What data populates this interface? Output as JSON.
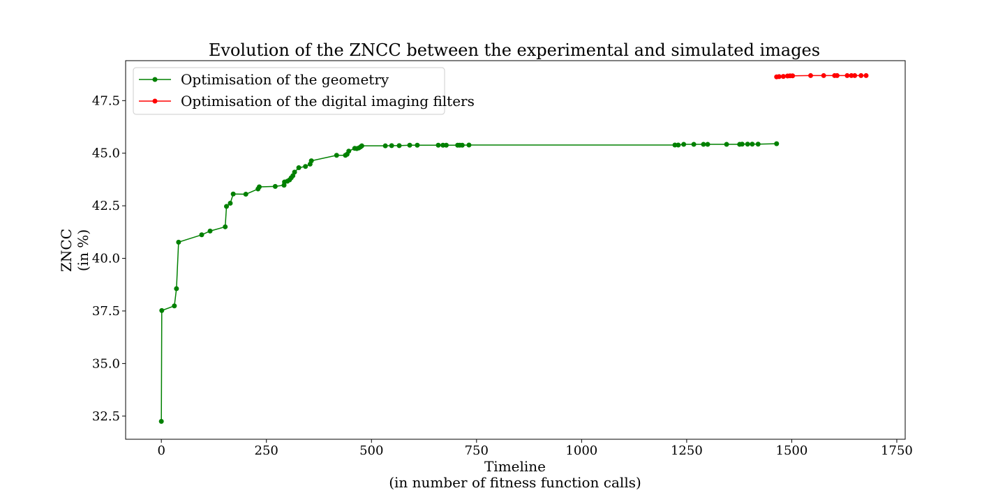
{
  "chart_data": {
    "type": "line",
    "title": "Evolution of the ZNCC between the experimental and simulated images",
    "xlabel": [
      "Timeline",
      "(in number of fitness function calls)"
    ],
    "ylabel": [
      "ZNCC",
      "(in %)"
    ],
    "xlim": [
      -85,
      1770
    ],
    "ylim": [
      31.4,
      49.4
    ],
    "xticks": [
      0,
      250,
      500,
      750,
      1000,
      1250,
      1500,
      1750
    ],
    "xtick_labels": [
      "0",
      "250",
      "500",
      "750",
      "1000",
      "1250",
      "1500",
      "1750"
    ],
    "yticks": [
      32.5,
      35.0,
      37.5,
      40.0,
      42.5,
      45.0,
      47.5
    ],
    "ytick_labels": [
      "32.5",
      "35.0",
      "37.5",
      "40.0",
      "42.5",
      "45.0",
      "47.5"
    ],
    "grid": false,
    "legend_position": "top-left",
    "series": [
      {
        "name": "Optimisation of the geometry",
        "color": "#008000",
        "points": [
          [
            0,
            32.25
          ],
          [
            1,
            37.52
          ],
          [
            31,
            37.74
          ],
          [
            36,
            38.56
          ],
          [
            41,
            40.77
          ],
          [
            96,
            41.12
          ],
          [
            116,
            41.3
          ],
          [
            152,
            41.5
          ],
          [
            155,
            42.47
          ],
          [
            164,
            42.62
          ],
          [
            171,
            43.06
          ],
          [
            201,
            43.05
          ],
          [
            230,
            43.3
          ],
          [
            233,
            43.4
          ],
          [
            271,
            43.42
          ],
          [
            292,
            43.48
          ],
          [
            293,
            43.63
          ],
          [
            300,
            43.67
          ],
          [
            305,
            43.73
          ],
          [
            309,
            43.83
          ],
          [
            313,
            43.93
          ],
          [
            317,
            44.1
          ],
          [
            327,
            44.31
          ],
          [
            343,
            44.37
          ],
          [
            354,
            44.48
          ],
          [
            357,
            44.64
          ],
          [
            417,
            44.9
          ],
          [
            438,
            44.9
          ],
          [
            442,
            44.95
          ],
          [
            446,
            45.1
          ],
          [
            460,
            45.23
          ],
          [
            465,
            45.22
          ],
          [
            470,
            45.25
          ],
          [
            474,
            45.3
          ],
          [
            477,
            45.35
          ],
          [
            533,
            45.35
          ],
          [
            548,
            45.36
          ],
          [
            566,
            45.36
          ],
          [
            591,
            45.38
          ],
          [
            609,
            45.38
          ],
          [
            659,
            45.38
          ],
          [
            670,
            45.38
          ],
          [
            678,
            45.38
          ],
          [
            705,
            45.38
          ],
          [
            710,
            45.38
          ],
          [
            716,
            45.38
          ],
          [
            732,
            45.39
          ],
          [
            1222,
            45.39
          ],
          [
            1230,
            45.39
          ],
          [
            1243,
            45.42
          ],
          [
            1267,
            45.42
          ],
          [
            1290,
            45.42
          ],
          [
            1300,
            45.42
          ],
          [
            1345,
            45.42
          ],
          [
            1376,
            45.42
          ],
          [
            1382,
            45.43
          ],
          [
            1395,
            45.43
          ],
          [
            1406,
            45.43
          ],
          [
            1420,
            45.43
          ],
          [
            1464,
            45.45
          ]
        ]
      },
      {
        "name": "Optimisation of the digital imaging filters",
        "color": "#ff0000",
        "points": [
          [
            1464,
            48.63
          ],
          [
            1470,
            48.64
          ],
          [
            1480,
            48.65
          ],
          [
            1490,
            48.67
          ],
          [
            1496,
            48.68
          ],
          [
            1502,
            48.68
          ],
          [
            1545,
            48.69
          ],
          [
            1576,
            48.69
          ],
          [
            1602,
            48.69
          ],
          [
            1608,
            48.69
          ],
          [
            1632,
            48.69
          ],
          [
            1642,
            48.69
          ],
          [
            1650,
            48.69
          ],
          [
            1665,
            48.69
          ],
          [
            1677,
            48.69
          ]
        ]
      }
    ]
  }
}
